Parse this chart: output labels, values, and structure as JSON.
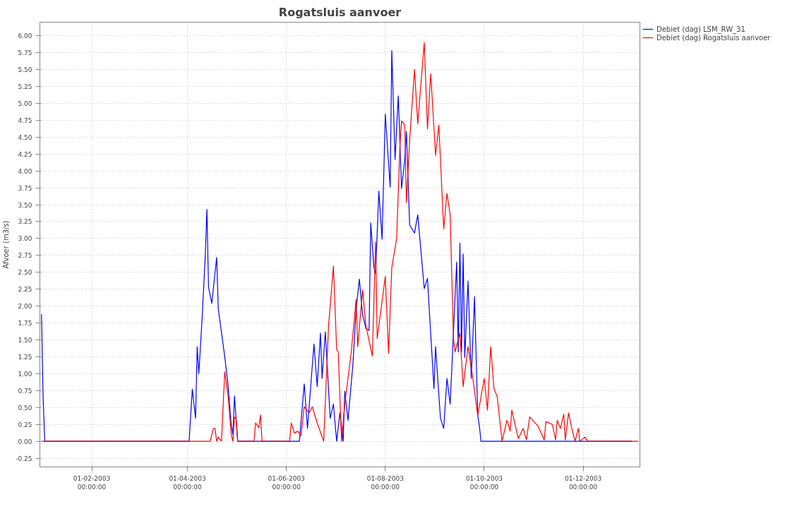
{
  "chart_data": {
    "type": "line",
    "title": "Rogatsluis aanvoer",
    "ylabel": "Afvoer (m3/s)",
    "xlim": [
      "2002-12-31",
      "2004-01-05"
    ],
    "ylim": [
      -0.38,
      6.2
    ],
    "xticks": [
      {
        "value": "2003-02-01",
        "label": "01-02-2003\n00:00:00"
      },
      {
        "value": "2003-04-01",
        "label": "01-04-2003\n00:00:00"
      },
      {
        "value": "2003-06-01",
        "label": "01-06-2003\n00:00:00"
      },
      {
        "value": "2003-08-01",
        "label": "01-08-2003\n00:00:00"
      },
      {
        "value": "2003-10-01",
        "label": "01-10-2003\n00:00:00"
      },
      {
        "value": "2003-12-01",
        "label": "01-12-2003\n00:00:00"
      }
    ],
    "yticks": [
      {
        "value": -0.25,
        "label": "-0.25"
      },
      {
        "value": 0,
        "label": "0.00"
      },
      {
        "value": 0.25,
        "label": "0.25"
      },
      {
        "value": 0.5,
        "label": "0.50"
      },
      {
        "value": 0.75,
        "label": "0.75"
      },
      {
        "value": 1,
        "label": "1.00"
      },
      {
        "value": 1.25,
        "label": "1.25"
      },
      {
        "value": 1.5,
        "label": "1.50"
      },
      {
        "value": 1.75,
        "label": "1.75"
      },
      {
        "value": 2,
        "label": "2.00"
      },
      {
        "value": 2.25,
        "label": "2.25"
      },
      {
        "value": 2.5,
        "label": "2.50"
      },
      {
        "value": 2.75,
        "label": "2.75"
      },
      {
        "value": 3,
        "label": "3.00"
      },
      {
        "value": 3.25,
        "label": "3.25"
      },
      {
        "value": 3.5,
        "label": "3.50"
      },
      {
        "value": 3.75,
        "label": "3.75"
      },
      {
        "value": 4,
        "label": "4.00"
      },
      {
        "value": 4.25,
        "label": "4.25"
      },
      {
        "value": 4.5,
        "label": "4.50"
      },
      {
        "value": 4.75,
        "label": "4.75"
      },
      {
        "value": 5,
        "label": "5.00"
      },
      {
        "value": 5.25,
        "label": "5.25"
      },
      {
        "value": 5.5,
        "label": "5.50"
      },
      {
        "value": 5.75,
        "label": "5.75"
      },
      {
        "value": 6,
        "label": "6.00"
      }
    ],
    "grid": true,
    "legend": "top right",
    "line_style": "solid",
    "series": [
      {
        "name": "Debiet (dag) LSM_RW_31",
        "color": "#0000ff",
        "x": [
          "2003-01-01",
          "2003-01-02",
          "2003-01-03",
          "2003-04-02",
          "2003-04-04",
          "2003-04-06",
          "2003-04-07",
          "2003-04-08",
          "2003-04-10",
          "2003-04-12",
          "2003-04-13",
          "2003-04-14",
          "2003-04-16",
          "2003-04-19",
          "2003-04-20",
          "2003-04-24",
          "2003-04-26",
          "2003-04-28",
          "2003-04-29",
          "2003-04-30",
          "2003-05-01",
          "2003-05-02",
          "2003-06-09",
          "2003-06-12",
          "2003-06-14",
          "2003-06-16",
          "2003-06-18",
          "2003-06-20",
          "2003-06-22",
          "2003-06-23",
          "2003-06-25",
          "2003-06-28",
          "2003-06-30",
          "2003-07-02",
          "2003-07-04",
          "2003-07-06",
          "2003-07-07",
          "2003-07-09",
          "2003-07-12",
          "2003-07-14",
          "2003-07-16",
          "2003-07-18",
          "2003-07-20",
          "2003-07-22",
          "2003-07-23",
          "2003-07-25",
          "2003-07-26",
          "2003-07-28",
          "2003-07-30",
          "2003-08-01",
          "2003-08-04",
          "2003-08-05",
          "2003-08-07",
          "2003-08-09",
          "2003-08-11",
          "2003-08-13",
          "2003-08-14",
          "2003-08-16",
          "2003-08-19",
          "2003-08-21",
          "2003-08-25",
          "2003-08-27",
          "2003-08-28",
          "2003-08-31",
          "2003-09-01",
          "2003-09-04",
          "2003-09-06",
          "2003-09-08",
          "2003-09-10",
          "2003-09-14",
          "2003-09-15",
          "2003-09-16",
          "2003-09-17",
          "2003-09-18",
          "2003-09-19",
          "2003-09-21",
          "2003-09-23",
          "2003-09-25",
          "2003-09-27",
          "2003-09-28",
          "2003-09-29",
          "2003-12-31"
        ],
        "values": [
          1.88,
          0.63,
          0,
          0,
          0.77,
          0.34,
          1.4,
          1.0,
          1.8,
          2.76,
          3.43,
          2.28,
          2.04,
          2.72,
          1.96,
          1.25,
          0.84,
          0.24,
          0.1,
          0.67,
          0.33,
          0,
          0,
          0.85,
          0.19,
          0.81,
          1.44,
          0.81,
          1.6,
          0.93,
          1.62,
          0.34,
          0.55,
          0,
          0.42,
          0,
          0.74,
          0.31,
          1.13,
          1.95,
          2.4,
          1.87,
          1.67,
          1.64,
          3.23,
          2.57,
          2.48,
          3.7,
          2.99,
          4.84,
          3.76,
          5.78,
          4.17,
          5.11,
          3.74,
          4.17,
          4.58,
          3.2,
          3.08,
          3.35,
          2.26,
          2.41,
          1.99,
          0.78,
          1.4,
          0.34,
          0.19,
          0.93,
          0.55,
          2.65,
          1.32,
          2.93,
          1.32,
          2.77,
          1.24,
          2.37,
          0.93,
          2.14,
          0.38,
          0.23,
          0,
          0
        ]
      },
      {
        "name": "Debiet (dag) Rogatsluis aanvoer",
        "color": "#ff0000",
        "x": [
          "2003-01-01",
          "2003-04-15",
          "2003-04-17",
          "2003-04-18",
          "2003-04-19",
          "2003-04-20",
          "2003-04-22",
          "2003-04-23",
          "2003-04-24",
          "2003-04-26",
          "2003-04-28",
          "2003-04-29",
          "2003-04-30",
          "2003-05-01",
          "2003-05-02",
          "2003-05-12",
          "2003-05-13",
          "2003-05-15",
          "2003-05-16",
          "2003-05-17",
          "2003-06-03",
          "2003-06-04",
          "2003-06-06",
          "2003-06-08",
          "2003-06-10",
          "2003-06-12",
          "2003-06-15",
          "2003-06-17",
          "2003-06-20",
          "2003-06-24",
          "2003-06-27",
          "2003-06-30",
          "2003-07-02",
          "2003-07-03",
          "2003-07-05",
          "2003-07-07",
          "2003-07-11",
          "2003-07-14",
          "2003-07-15",
          "2003-07-18",
          "2003-07-20",
          "2003-07-24",
          "2003-07-26",
          "2003-07-27",
          "2003-08-01",
          "2003-08-03",
          "2003-08-05",
          "2003-08-08",
          "2003-08-10",
          "2003-08-11",
          "2003-08-13",
          "2003-08-14",
          "2003-08-16",
          "2003-08-19",
          "2003-08-21",
          "2003-08-25",
          "2003-08-27",
          "2003-08-29",
          "2003-09-01",
          "2003-09-03",
          "2003-09-06",
          "2003-09-08",
          "2003-09-10",
          "2003-09-12",
          "2003-09-13",
          "2003-09-16",
          "2003-09-18",
          "2003-09-21",
          "2003-09-24",
          "2003-09-27",
          "2003-10-01",
          "2003-10-03",
          "2003-10-05",
          "2003-10-07",
          "2003-10-09",
          "2003-10-12",
          "2003-10-15",
          "2003-10-17",
          "2003-10-18",
          "2003-10-22",
          "2003-10-25",
          "2003-10-27",
          "2003-10-29",
          "2003-11-03",
          "2003-11-07",
          "2003-11-08",
          "2003-11-12",
          "2003-11-14",
          "2003-11-15",
          "2003-11-17",
          "2003-11-19",
          "2003-11-20",
          "2003-11-22",
          "2003-11-24",
          "2003-11-26",
          "2003-11-28",
          "2003-11-29",
          "2003-12-02",
          "2003-12-04",
          "2004-01-04"
        ],
        "values": [
          0,
          0,
          0.19,
          0.19,
          0,
          0.06,
          0,
          0.53,
          1.03,
          0.68,
          0.1,
          0,
          0.36,
          0.33,
          0,
          0,
          0.27,
          0.2,
          0.39,
          0,
          0,
          0.27,
          0.12,
          0.15,
          0.08,
          0.51,
          0.42,
          0.51,
          0.27,
          0,
          1.71,
          2.59,
          1.36,
          1.32,
          0,
          0.55,
          1.32,
          2.1,
          1.4,
          2.24,
          1.71,
          1.26,
          2.95,
          1.52,
          2.44,
          1.3,
          2.57,
          3.0,
          4.37,
          4.74,
          4.68,
          3.53,
          4.45,
          5.5,
          4.7,
          5.9,
          4.62,
          5.44,
          4.23,
          4.68,
          3.14,
          3.67,
          3.35,
          1.52,
          1.32,
          1.6,
          0.81,
          1.4,
          0.93,
          0.38,
          0.93,
          0.46,
          1.4,
          0.78,
          0.66,
          0,
          0.31,
          0.15,
          0.46,
          0.04,
          0.19,
          0.02,
          0.36,
          0.23,
          0.02,
          0.29,
          0.25,
          0.02,
          0.31,
          0.19,
          0.4,
          0.02,
          0.42,
          0.19,
          0,
          0.19,
          0,
          0.06,
          0,
          0
        ]
      }
    ]
  }
}
